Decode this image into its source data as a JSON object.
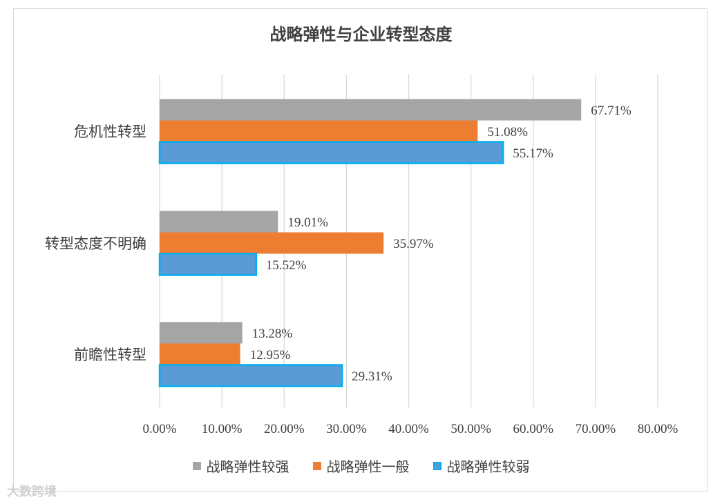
{
  "chart_data": {
    "type": "bar",
    "orientation": "horizontal",
    "title": "战略弹性与企业转型态度",
    "categories": [
      "危机性转型",
      "转型态度不明确",
      "前瞻性转型"
    ],
    "series": [
      {
        "name": "战略弹性较强",
        "values": [
          67.71,
          19.01,
          13.28
        ],
        "labels": [
          "67.71%",
          "19.01%",
          "13.28%"
        ],
        "color": "#a5a5a5"
      },
      {
        "name": "战略弹性一般",
        "values": [
          51.08,
          35.97,
          12.95
        ],
        "labels": [
          "51.08%",
          "35.97%",
          "12.95%"
        ],
        "color": "#ed7d31"
      },
      {
        "name": "战略弹性较弱",
        "values": [
          55.17,
          15.52,
          29.31
        ],
        "labels": [
          "55.17%",
          "15.52%",
          "29.31%"
        ],
        "color": "#5b9bd5",
        "border": "#00b0f0"
      }
    ],
    "xlim": [
      0,
      80
    ],
    "xticks": [
      "0.00%",
      "10.00%",
      "20.00%",
      "30.00%",
      "40.00%",
      "50.00%",
      "60.00%",
      "70.00%",
      "80.00%"
    ],
    "grid": true,
    "legend_position": "bottom"
  },
  "watermark": "大数跨境"
}
